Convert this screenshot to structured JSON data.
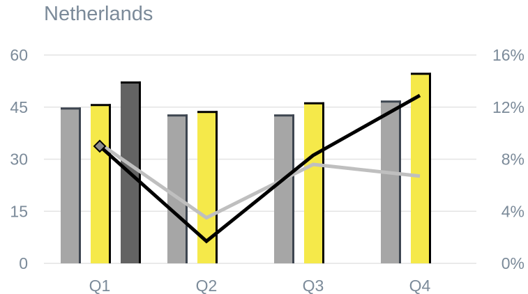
{
  "chart_data": {
    "type": "bar",
    "title": "Netherlands",
    "categories": [
      "Q1",
      "Q2",
      "Q3",
      "Q4"
    ],
    "y_left": {
      "min": 0,
      "max": 60,
      "ticks": [
        "0",
        "15",
        "30",
        "45",
        "60"
      ]
    },
    "y_right": {
      "min": 0,
      "max": 16,
      "ticks": [
        "0%",
        "4%",
        "8%",
        "12%",
        "16%"
      ]
    },
    "bar_series": [
      {
        "values": [
          44.5,
          42.5,
          42.5,
          46.5
        ],
        "color": "#a6a6a6",
        "edge": "#3d4550"
      },
      {
        "values": [
          45.5,
          43.5,
          46,
          54.5
        ],
        "color": "#f5e94a",
        "edge": "#000000"
      },
      {
        "values": [
          52,
          null,
          null,
          null
        ],
        "color": "#636363",
        "edge": "#000000"
      }
    ],
    "line_series": [
      {
        "values": [
          9.0,
          1.7,
          8.3,
          12.9
        ],
        "color": "#000000",
        "axis": "right",
        "first_marker": "diamond"
      },
      {
        "values": [
          9.2,
          3.5,
          7.6,
          6.7
        ],
        "color": "#bfbfbf",
        "axis": "right"
      }
    ],
    "grid": true,
    "legend": "none"
  }
}
